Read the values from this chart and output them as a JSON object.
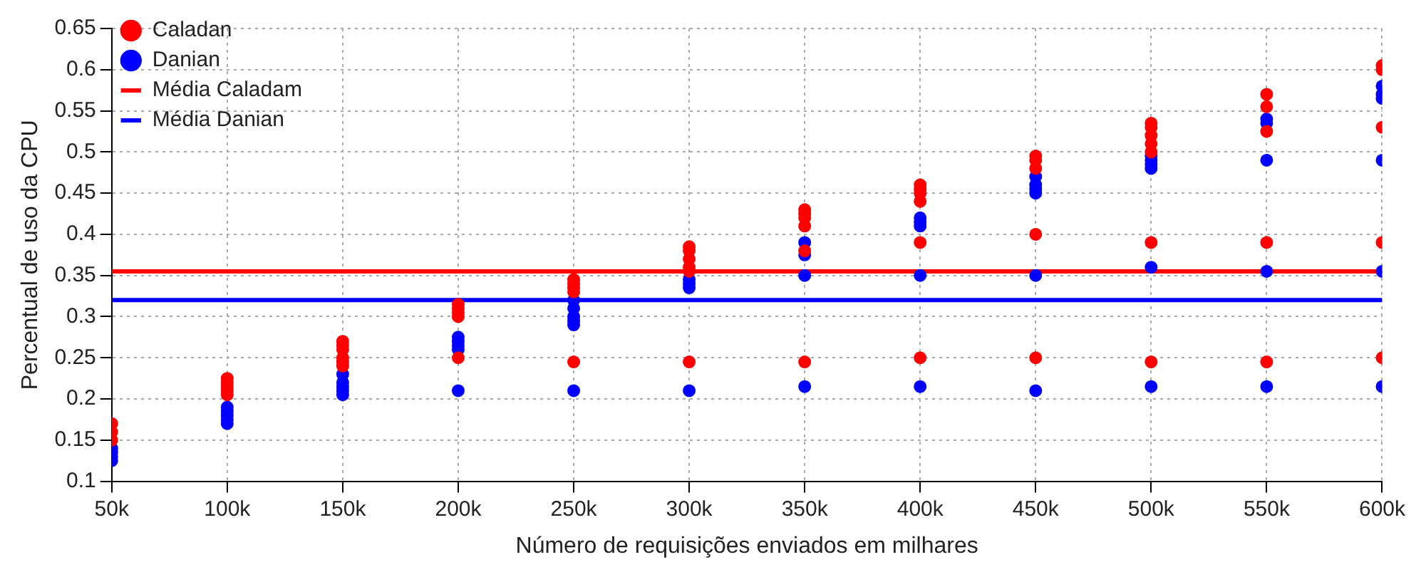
{
  "chart_data": {
    "type": "scatter",
    "xlabel": "Número de requisições enviados em milhares",
    "ylabel": "Percentual de uso da CPU",
    "xlim": [
      50,
      600
    ],
    "ylim": [
      0.1,
      0.65
    ],
    "xticks": [
      {
        "value": 50,
        "label": "50k"
      },
      {
        "value": 100,
        "label": "100k"
      },
      {
        "value": 150,
        "label": "150k"
      },
      {
        "value": 200,
        "label": "200k"
      },
      {
        "value": 250,
        "label": "250k"
      },
      {
        "value": 300,
        "label": "300k"
      },
      {
        "value": 350,
        "label": "350k"
      },
      {
        "value": 400,
        "label": "400k"
      },
      {
        "value": 450,
        "label": "450k"
      },
      {
        "value": 500,
        "label": "500k"
      },
      {
        "value": 550,
        "label": "550k"
      },
      {
        "value": 600,
        "label": "600k"
      }
    ],
    "yticks": [
      0.1,
      0.15,
      0.2,
      0.25,
      0.3,
      0.35,
      0.4,
      0.45,
      0.5,
      0.55,
      0.6,
      0.65
    ],
    "grid": true,
    "legend": "top left",
    "series": [
      {
        "name": "Caladan",
        "color": "#ff0000",
        "type": "scatter",
        "marker": "circle",
        "x": [
          50,
          50,
          50,
          100,
          100,
          100,
          100,
          100,
          150,
          150,
          150,
          150,
          150,
          150,
          200,
          200,
          200,
          200,
          200,
          250,
          250,
          250,
          250,
          250,
          300,
          300,
          300,
          300,
          300,
          300,
          350,
          350,
          350,
          350,
          350,
          350,
          400,
          400,
          400,
          400,
          400,
          400,
          450,
          450,
          450,
          450,
          450,
          500,
          500,
          500,
          500,
          500,
          500,
          500,
          550,
          550,
          550,
          550,
          550,
          600,
          600,
          600,
          600,
          600
        ],
        "values": [
          0.17,
          0.16,
          0.15,
          0.225,
          0.22,
          0.215,
          0.21,
          0.205,
          0.27,
          0.265,
          0.26,
          0.25,
          0.245,
          0.24,
          0.315,
          0.31,
          0.305,
          0.3,
          0.25,
          0.345,
          0.34,
          0.335,
          0.33,
          0.245,
          0.385,
          0.38,
          0.37,
          0.36,
          0.355,
          0.245,
          0.43,
          0.425,
          0.42,
          0.41,
          0.38,
          0.245,
          0.46,
          0.455,
          0.45,
          0.44,
          0.39,
          0.25,
          0.495,
          0.49,
          0.48,
          0.4,
          0.25,
          0.535,
          0.53,
          0.52,
          0.51,
          0.5,
          0.39,
          0.245,
          0.57,
          0.555,
          0.525,
          0.39,
          0.245,
          0.605,
          0.6,
          0.53,
          0.39,
          0.25
        ]
      },
      {
        "name": "Danian",
        "color": "#0000ff",
        "type": "scatter",
        "marker": "circle",
        "x": [
          50,
          50,
          50,
          50,
          100,
          100,
          100,
          100,
          100,
          150,
          150,
          150,
          150,
          150,
          200,
          200,
          200,
          200,
          200,
          250,
          250,
          250,
          250,
          250,
          250,
          300,
          300,
          300,
          300,
          350,
          350,
          350,
          350,
          400,
          400,
          400,
          400,
          400,
          450,
          450,
          450,
          450,
          450,
          450,
          500,
          500,
          500,
          500,
          500,
          500,
          550,
          550,
          550,
          550,
          550,
          600,
          600,
          600,
          600,
          600,
          600
        ],
        "values": [
          0.14,
          0.135,
          0.13,
          0.125,
          0.19,
          0.185,
          0.18,
          0.175,
          0.17,
          0.23,
          0.22,
          0.215,
          0.21,
          0.205,
          0.275,
          0.27,
          0.265,
          0.26,
          0.21,
          0.32,
          0.31,
          0.3,
          0.295,
          0.29,
          0.21,
          0.345,
          0.34,
          0.335,
          0.21,
          0.39,
          0.375,
          0.35,
          0.215,
          0.42,
          0.415,
          0.41,
          0.35,
          0.215,
          0.47,
          0.46,
          0.455,
          0.45,
          0.35,
          0.21,
          0.495,
          0.49,
          0.485,
          0.48,
          0.36,
          0.215,
          0.54,
          0.535,
          0.49,
          0.355,
          0.215,
          0.58,
          0.57,
          0.565,
          0.49,
          0.355,
          0.215
        ]
      },
      {
        "name": "Média Caladam",
        "color": "#ff0000",
        "type": "line",
        "x": [
          50,
          600
        ],
        "values": [
          0.355,
          0.355
        ]
      },
      {
        "name": "Média Danian",
        "color": "#0000ff",
        "type": "line",
        "x": [
          50,
          600
        ],
        "values": [
          0.32,
          0.32
        ]
      }
    ]
  }
}
